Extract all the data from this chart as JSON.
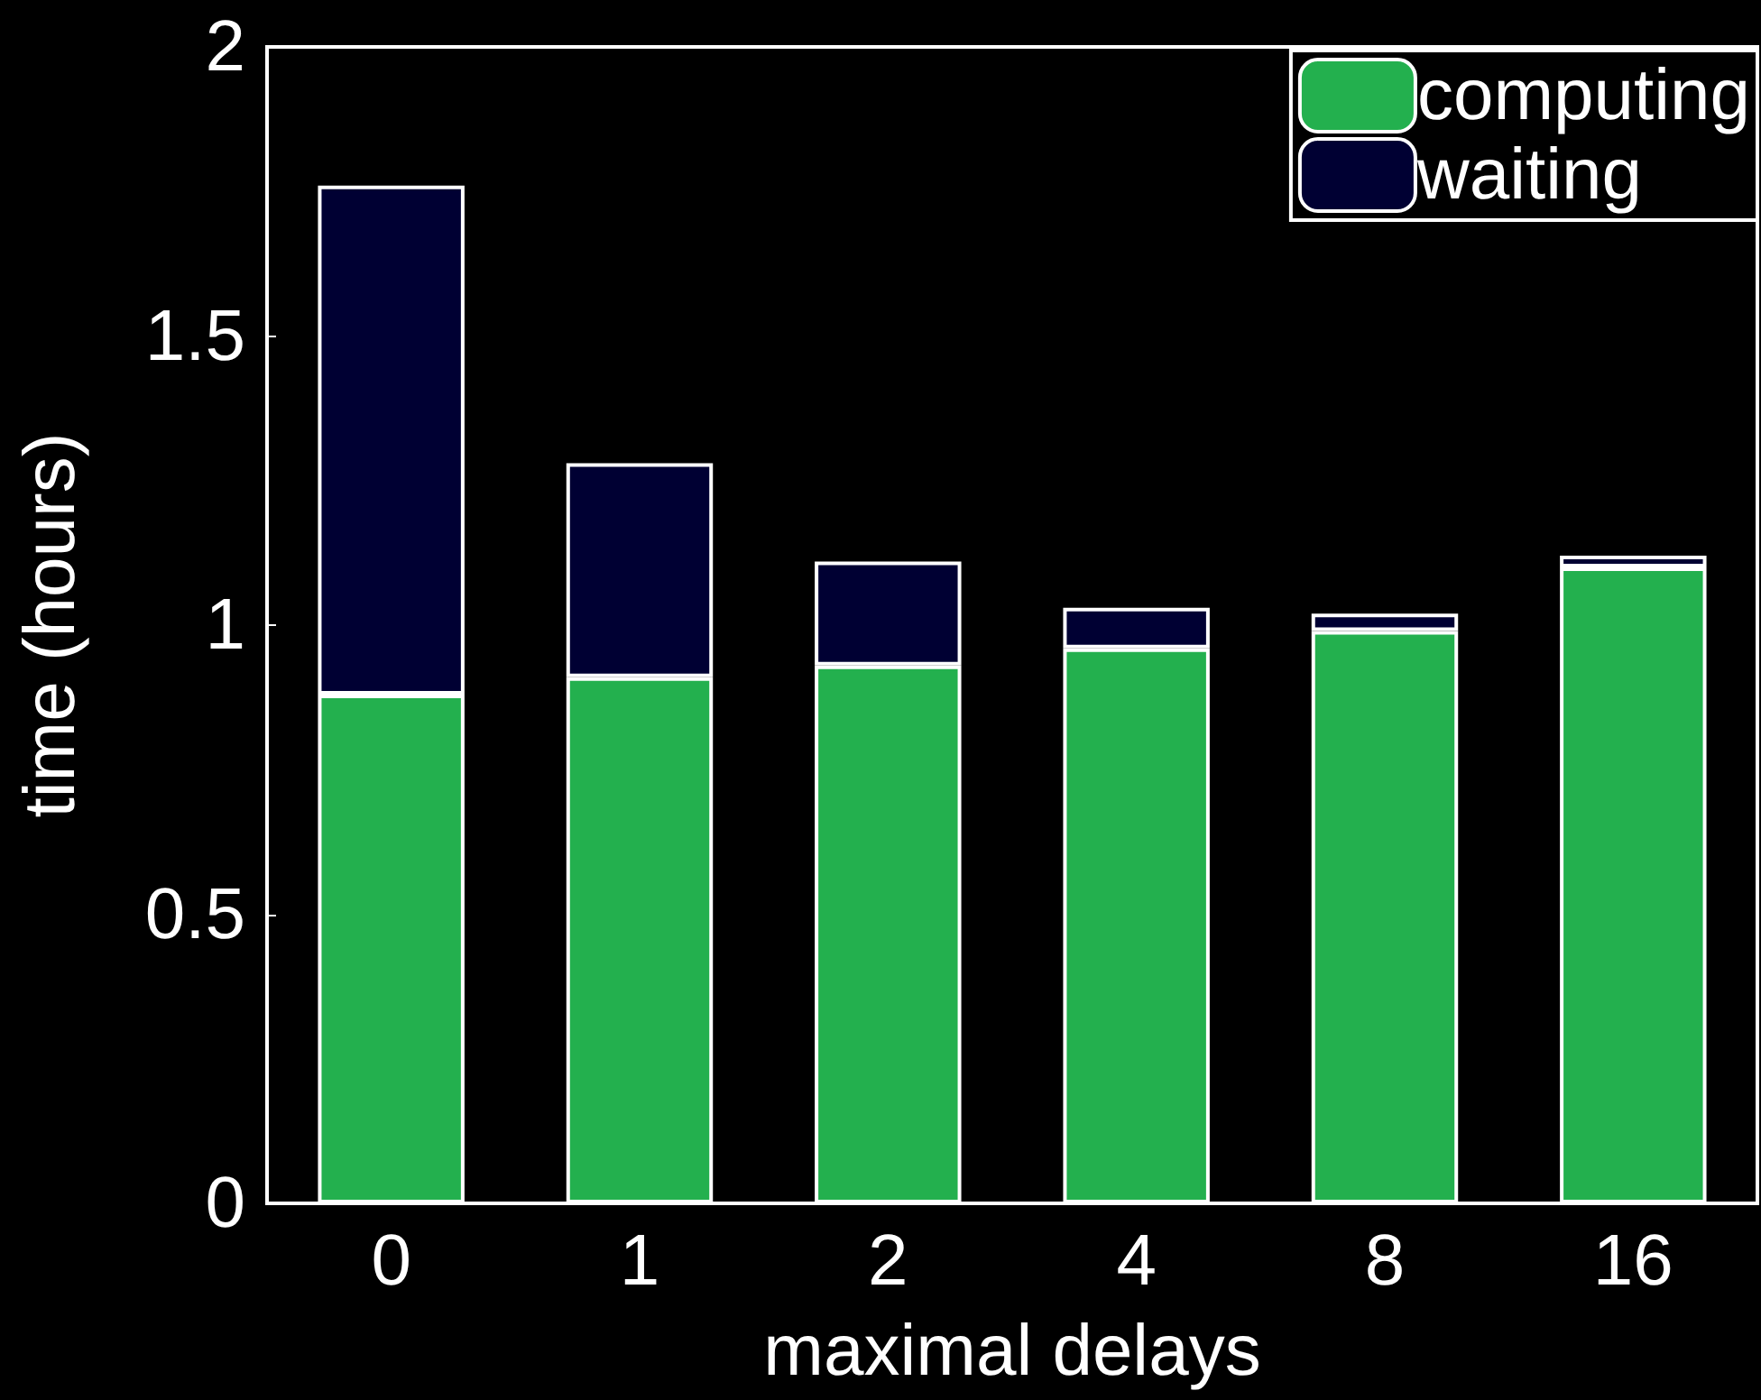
{
  "chart_data": {
    "type": "bar",
    "stacked": true,
    "xlabel": "maximal delays",
    "ylabel": "time (hours)",
    "categories": [
      "0",
      "1",
      "2",
      "4",
      "8",
      "16"
    ],
    "series": [
      {
        "name": "computing",
        "color": "#23b04e",
        "values": [
          0.88,
          0.91,
          0.93,
          0.96,
          0.99,
          1.1
        ]
      },
      {
        "name": "waiting",
        "color": "#000033",
        "values": [
          0.88,
          0.37,
          0.18,
          0.07,
          0.03,
          0.02
        ]
      }
    ],
    "ylim": [
      0,
      2
    ],
    "yticks": [
      0,
      0.5,
      1,
      1.5,
      2
    ],
    "grid": false,
    "legend": "top right"
  }
}
